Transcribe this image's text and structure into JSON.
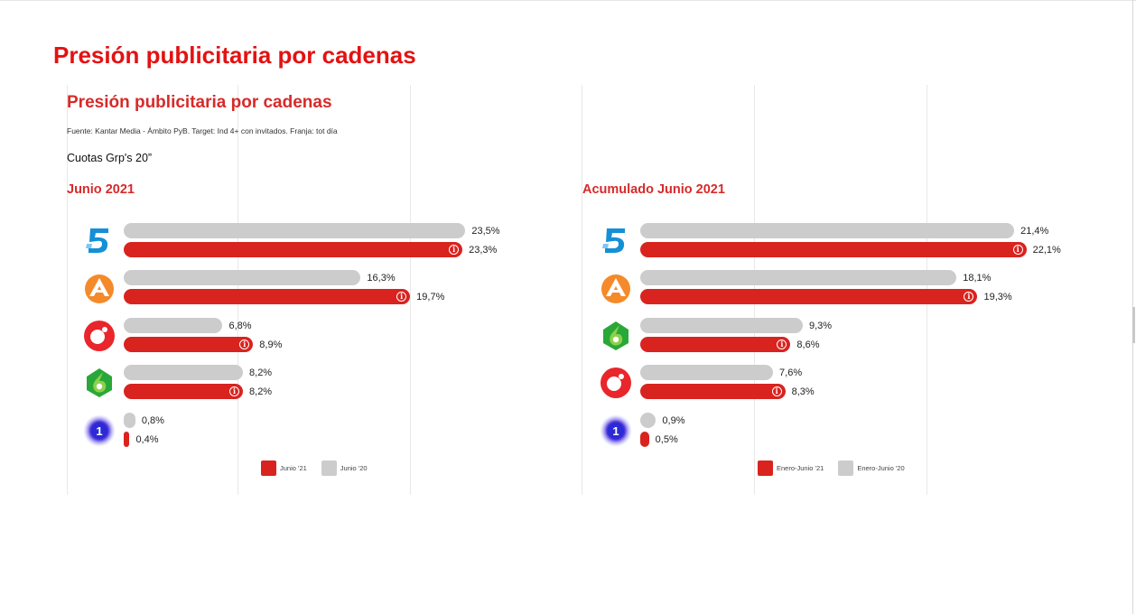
{
  "page": {
    "title": "Presión publicitaria por cadenas",
    "panel_title": "Presión publicitaria por cadenas",
    "source": "Fuente: Kantar Media - Ámbito PyB. Target: Ind 4+ con invitados. Franja: tot día",
    "metric": "Cuotas Grp's 20”"
  },
  "colors": {
    "current": "#d9231f",
    "previous": "#cccccc",
    "title": "#e31212"
  },
  "chart_data": [
    {
      "type": "bar",
      "title": "Junio 2021",
      "orientation": "horizontal",
      "categories": [
        "Telecinco",
        "Antena 3",
        "Cuatro",
        "laSexta",
        "La 1"
      ],
      "category_icons": [
        "telecinco-logo",
        "antena3-logo",
        "cuatro-logo",
        "lasexta-logo",
        "la1-logo"
      ],
      "series": [
        {
          "name": "Junio '20",
          "values": [
            23.5,
            16.3,
            6.8,
            8.2,
            0.8
          ],
          "labels": [
            "23,5%",
            "16,3%",
            "6,8%",
            "8,2%",
            "0,8%"
          ],
          "color": "#cccccc"
        },
        {
          "name": "Junio '21",
          "values": [
            23.3,
            19.7,
            8.9,
            8.2,
            0.4
          ],
          "labels": [
            "23,3%",
            "19,7%",
            "8,9%",
            "8,2%",
            "0,4%"
          ],
          "color": "#d9231f"
        }
      ],
      "legend": [
        "Junio '21",
        "Junio '20"
      ],
      "legend_position": "bottom",
      "grid": true
    },
    {
      "type": "bar",
      "title": "Acumulado Junio 2021",
      "orientation": "horizontal",
      "categories": [
        "Telecinco",
        "Antena 3",
        "laSexta",
        "Cuatro",
        "La 1"
      ],
      "category_icons": [
        "telecinco-logo",
        "antena3-logo",
        "lasexta-logo",
        "cuatro-logo",
        "la1-logo"
      ],
      "series": [
        {
          "name": "Enero-Junio '20",
          "values": [
            21.4,
            18.1,
            9.3,
            7.6,
            0.9
          ],
          "labels": [
            "21,4%",
            "18,1%",
            "9,3%",
            "7,6%",
            "0,9%"
          ],
          "color": "#cccccc"
        },
        {
          "name": "Enero-Junio '21",
          "values": [
            22.1,
            19.3,
            8.6,
            8.3,
            0.5
          ],
          "labels": [
            "22,1%",
            "19,3%",
            "8,6%",
            "8,3%",
            "0,5%"
          ],
          "color": "#d9231f"
        }
      ],
      "legend": [
        "Enero-Junio '21",
        "Enero-Junio '20"
      ],
      "legend_position": "bottom",
      "grid": true
    }
  ]
}
